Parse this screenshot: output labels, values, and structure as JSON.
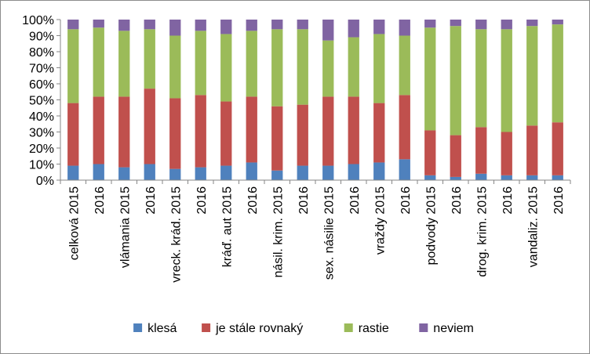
{
  "chart_data": {
    "type": "bar",
    "stacked": true,
    "percent": true,
    "categories": [
      "celková 2015",
      "2016",
      "vlámania 2015",
      "2016",
      "vreck. krád. 2015",
      "2016",
      "kráď. aut 2015",
      "2016",
      "násil. krim. 2015",
      "2016",
      "sex. násilie 2015",
      "2016",
      "vraždy 2015",
      "2016",
      "podvody 2015",
      "2016",
      "drog. krim. 2015",
      "2016",
      "vandaliz. 2015",
      "2016"
    ],
    "series": [
      {
        "name": "klesá",
        "color": "#4f81bd",
        "values": [
          9,
          10,
          8,
          10,
          7,
          8,
          9,
          11,
          6,
          9,
          9,
          10,
          11,
          13,
          3,
          2,
          4,
          3,
          3,
          3
        ]
      },
      {
        "name": "je stále rovnaký",
        "color": "#c0504d",
        "values": [
          39,
          42,
          44,
          47,
          44,
          45,
          40,
          41,
          40,
          38,
          43,
          42,
          37,
          40,
          28,
          26,
          29,
          27,
          31,
          33
        ]
      },
      {
        "name": "rastie",
        "color": "#9bbb59",
        "values": [
          46,
          43,
          41,
          37,
          39,
          40,
          42,
          41,
          48,
          47,
          35,
          37,
          43,
          37,
          64,
          68,
          61,
          64,
          62,
          61
        ]
      },
      {
        "name": "neviem",
        "color": "#8064a2",
        "values": [
          6,
          5,
          7,
          6,
          10,
          7,
          9,
          7,
          6,
          6,
          13,
          11,
          9,
          10,
          5,
          4,
          6,
          6,
          4,
          3
        ]
      }
    ],
    "ylim": [
      0,
      100
    ],
    "yticks": [
      "0%",
      "10%",
      "20%",
      "30%",
      "40%",
      "50%",
      "60%",
      "70%",
      "80%",
      "90%",
      "100%"
    ],
    "grid": false,
    "legend_position": "bottom"
  }
}
